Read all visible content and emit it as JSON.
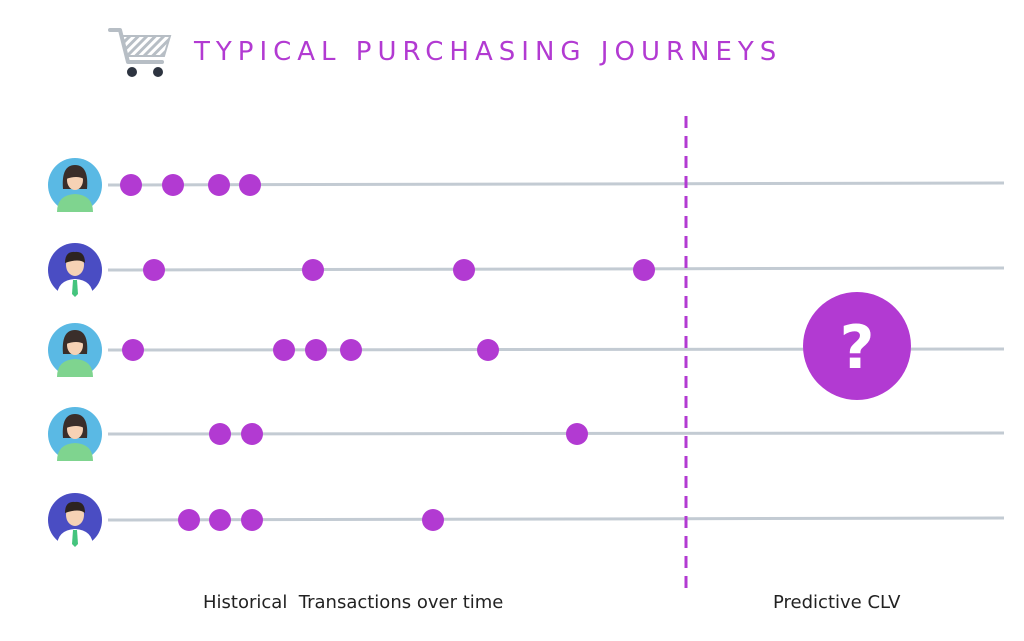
{
  "header": {
    "title": "TYPICAL PURCHASING JOURNEYS",
    "icon": "shopping-cart-icon"
  },
  "captions": {
    "historical": "Historical  Transactions over time",
    "predictive": "Predictive CLV"
  },
  "prediction_symbol": "?",
  "colors": {
    "accent": "#b23ad2",
    "timeline": "#c3cbd3",
    "female_avatar_bg": "#5ab9e4",
    "male_avatar_bg": "#4a4dc3",
    "cart_gray": "#b7bec5"
  },
  "customers": [
    {
      "avatar": "female-avatar-icon",
      "transactions": 4
    },
    {
      "avatar": "male-avatar-icon",
      "transactions": 4
    },
    {
      "avatar": "female-avatar-icon",
      "transactions": 5
    },
    {
      "avatar": "female-avatar-icon",
      "transactions": 3
    },
    {
      "avatar": "male-avatar-icon",
      "transactions": 4
    }
  ]
}
